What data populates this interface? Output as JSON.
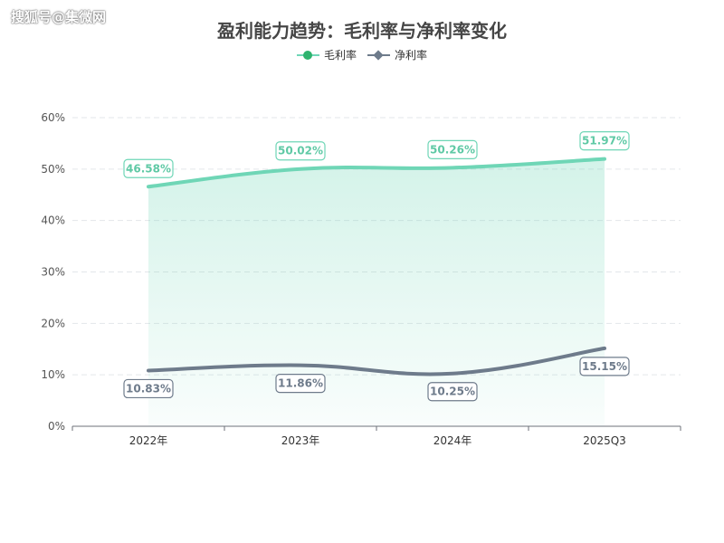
{
  "watermark": "搜狐号@集微网",
  "chart_data": {
    "type": "line",
    "title": "盈利能力趋势：毛利率与净利率变化",
    "categories": [
      "2022年",
      "2023年",
      "2024年",
      "2025Q3"
    ],
    "y_ticks": [
      "0%",
      "10%",
      "20%",
      "30%",
      "40%",
      "50%",
      "60%"
    ],
    "ylim": [
      0,
      60
    ],
    "grid": true,
    "legend_position": "top-center",
    "series": [
      {
        "name": "毛利率",
        "values": [
          46.58,
          50.02,
          50.26,
          51.97
        ],
        "labels": [
          "46.58%",
          "50.02%",
          "50.26%",
          "51.97%"
        ],
        "color": "#6fd6b6",
        "marker": "circle",
        "legend_color": "#2eb36e",
        "area": true
      },
      {
        "name": "净利率",
        "values": [
          10.83,
          11.86,
          10.25,
          15.15
        ],
        "labels": [
          "10.83%",
          "11.86%",
          "10.25%",
          "15.15%"
        ],
        "color": "#6e7b8b",
        "marker": "diamond",
        "legend_color": "#6e7b8b",
        "area": false
      }
    ]
  }
}
